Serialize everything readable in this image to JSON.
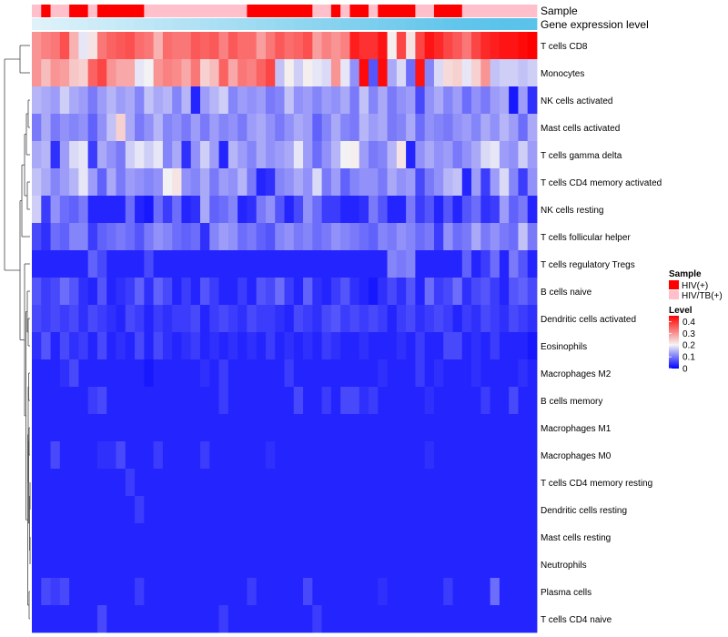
{
  "chart_data": {
    "type": "heatmap",
    "annotations": [
      "Sample",
      "Gene expression level"
    ],
    "rows": [
      "T cells CD8",
      "Monocytes",
      "NK cells activated",
      "Mast cells activated",
      "T cells gamma delta",
      "T cells CD4 memory activated",
      "NK cells resting",
      "T cells follicular helper",
      "T cells regulatory  Tregs",
      "B cells naive",
      "Dendritic cells activated",
      "Eosinophils",
      "Macrophages M2",
      "B cells memory",
      "Macrophages M1",
      "Macrophages M0",
      "T cells CD4 memory resting",
      "Dendritic cells resting",
      "Mast cells resting",
      "Neutrophils",
      "Plasma cells",
      "T cells CD4 naive"
    ],
    "sample_groups": [
      "P",
      "R",
      "P",
      "P",
      "R",
      "R",
      "P",
      "R",
      "R",
      "R",
      "R",
      "R",
      "P",
      "P",
      "P",
      "P",
      "P",
      "P",
      "P",
      "P",
      "P",
      "P",
      "P",
      "R",
      "R",
      "R",
      "R",
      "R",
      "R",
      "R",
      "P",
      "P",
      "R",
      "P",
      "R",
      "R",
      "P",
      "R",
      "R",
      "R",
      "R",
      "P",
      "P",
      "R",
      "R",
      "R",
      "P",
      "P",
      "P",
      "P",
      "P",
      "P",
      "P",
      "P"
    ],
    "expression_level": [
      0.05,
      0.07,
      0.09,
      0.11,
      0.13,
      0.15,
      0.17,
      0.19,
      0.21,
      0.23,
      0.25,
      0.27,
      0.29,
      0.31,
      0.33,
      0.35,
      0.37,
      0.39,
      0.41,
      0.43,
      0.45,
      0.47,
      0.49,
      0.51,
      0.53,
      0.55,
      0.57,
      0.59,
      0.61,
      0.63,
      0.65,
      0.67,
      0.69,
      0.71,
      0.73,
      0.75,
      0.77,
      0.79,
      0.81,
      0.83,
      0.85,
      0.87,
      0.89,
      0.91,
      0.93,
      0.95,
      0.96,
      0.97,
      0.98,
      0.99,
      1.0,
      1.0,
      1.0,
      1.0
    ],
    "values": [
      [
        0.3,
        0.32,
        0.33,
        0.37,
        0.27,
        0.19,
        0.22,
        0.33,
        0.35,
        0.36,
        0.37,
        0.34,
        0.33,
        0.27,
        0.34,
        0.33,
        0.33,
        0.36,
        0.35,
        0.36,
        0.32,
        0.36,
        0.34,
        0.34,
        0.29,
        0.33,
        0.36,
        0.34,
        0.35,
        0.37,
        0.29,
        0.32,
        0.3,
        0.32,
        0.42,
        0.4,
        0.4,
        0.43,
        0.21,
        0.38,
        0.22,
        0.38,
        0.43,
        0.41,
        0.38,
        0.36,
        0.33,
        0.38,
        0.41,
        0.42,
        0.43,
        0.43,
        0.44,
        0.45
      ],
      [
        0.3,
        0.26,
        0.3,
        0.29,
        0.25,
        0.24,
        0.35,
        0.38,
        0.3,
        0.28,
        0.28,
        0.19,
        0.2,
        0.3,
        0.32,
        0.31,
        0.28,
        0.33,
        0.24,
        0.26,
        0.35,
        0.28,
        0.33,
        0.32,
        0.35,
        0.38,
        0.16,
        0.21,
        0.17,
        0.21,
        0.19,
        0.18,
        0.3,
        0.19,
        0.12,
        0.44,
        0.07,
        0.44,
        0.14,
        0.18,
        0.09,
        0.43,
        0.11,
        0.18,
        0.23,
        0.24,
        0.19,
        0.24,
        0.3,
        0.16,
        0.17,
        0.17,
        0.16,
        0.17
      ],
      [
        0.15,
        0.14,
        0.13,
        0.17,
        0.14,
        0.13,
        0.1,
        0.13,
        0.15,
        0.13,
        0.14,
        0.11,
        0.16,
        0.14,
        0.15,
        0.11,
        0.15,
        0.03,
        0.13,
        0.15,
        0.17,
        0.11,
        0.13,
        0.12,
        0.13,
        0.1,
        0.11,
        0.16,
        0.12,
        0.13,
        0.11,
        0.13,
        0.12,
        0.14,
        0.1,
        0.16,
        0.11,
        0.14,
        0.1,
        0.12,
        0.13,
        0.06,
        0.12,
        0.14,
        0.11,
        0.13,
        0.09,
        0.12,
        0.1,
        0.13,
        0.14,
        0.02,
        0.13,
        0.04
      ],
      [
        0.1,
        0.14,
        0.1,
        0.12,
        0.11,
        0.12,
        0.08,
        0.12,
        0.16,
        0.24,
        0.14,
        0.1,
        0.12,
        0.15,
        0.11,
        0.12,
        0.1,
        0.13,
        0.1,
        0.13,
        0.11,
        0.12,
        0.1,
        0.13,
        0.14,
        0.12,
        0.1,
        0.12,
        0.14,
        0.13,
        0.08,
        0.11,
        0.14,
        0.11,
        0.1,
        0.15,
        0.13,
        0.14,
        0.1,
        0.11,
        0.14,
        0.09,
        0.12,
        0.11,
        0.1,
        0.12,
        0.13,
        0.11,
        0.14,
        0.12,
        0.15,
        0.13,
        0.09,
        0.14
      ],
      [
        0.14,
        0.15,
        0.04,
        0.13,
        0.18,
        0.19,
        0.05,
        0.14,
        0.12,
        0.1,
        0.17,
        0.19,
        0.17,
        0.19,
        0.11,
        0.14,
        0.04,
        0.12,
        0.17,
        0.13,
        0.03,
        0.15,
        0.13,
        0.11,
        0.14,
        0.12,
        0.13,
        0.14,
        0.19,
        0.13,
        0.09,
        0.12,
        0.15,
        0.2,
        0.21,
        0.13,
        0.1,
        0.11,
        0.15,
        0.22,
        0.03,
        0.12,
        0.14,
        0.12,
        0.13,
        0.1,
        0.12,
        0.14,
        0.18,
        0.19,
        0.13,
        0.12,
        0.17,
        0.13
      ],
      [
        0.16,
        0.14,
        0.11,
        0.13,
        0.15,
        0.19,
        0.13,
        0.08,
        0.14,
        0.1,
        0.13,
        0.12,
        0.11,
        0.12,
        0.2,
        0.22,
        0.12,
        0.11,
        0.14,
        0.1,
        0.13,
        0.12,
        0.15,
        0.1,
        0.03,
        0.04,
        0.11,
        0.12,
        0.14,
        0.12,
        0.18,
        0.1,
        0.13,
        0.08,
        0.11,
        0.12,
        0.12,
        0.1,
        0.14,
        0.12,
        0.13,
        0.06,
        0.1,
        0.12,
        0.15,
        0.16,
        0.03,
        0.13,
        0.05,
        0.13,
        0.18,
        0.11,
        0.05,
        0.12
      ],
      [
        0.17,
        0.05,
        0.12,
        0.09,
        0.08,
        0.1,
        0.03,
        0.03,
        0.03,
        0.03,
        0.09,
        0.03,
        0.02,
        0.09,
        0.05,
        0.09,
        0.03,
        0.04,
        0.14,
        0.08,
        0.09,
        0.11,
        0.03,
        0.04,
        0.1,
        0.12,
        0.07,
        0.03,
        0.06,
        0.12,
        0.09,
        0.05,
        0.05,
        0.03,
        0.03,
        0.04,
        0.1,
        0.07,
        0.03,
        0.03,
        0.1,
        0.05,
        0.07,
        0.03,
        0.07,
        0.03,
        0.07,
        0.09,
        0.04,
        0.05,
        0.13,
        0.08,
        0.1,
        0.03
      ],
      [
        0.06,
        0.04,
        0.09,
        0.08,
        0.11,
        0.11,
        0.05,
        0.08,
        0.09,
        0.1,
        0.09,
        0.07,
        0.1,
        0.12,
        0.11,
        0.09,
        0.08,
        0.09,
        0.04,
        0.11,
        0.13,
        0.12,
        0.09,
        0.1,
        0.08,
        0.07,
        0.11,
        0.12,
        0.1,
        0.11,
        0.09,
        0.1,
        0.12,
        0.11,
        0.1,
        0.09,
        0.08,
        0.11,
        0.1,
        0.12,
        0.11,
        0.09,
        0.1,
        0.05,
        0.12,
        0.09,
        0.1,
        0.14,
        0.1,
        0.12,
        0.1,
        0.09,
        0.16,
        0.1
      ],
      [
        0.03,
        0.03,
        0.03,
        0.03,
        0.03,
        0.03,
        0.08,
        0.06,
        0.03,
        0.03,
        0.03,
        0.03,
        0.06,
        0.03,
        0.03,
        0.03,
        0.03,
        0.03,
        0.03,
        0.03,
        0.03,
        0.03,
        0.03,
        0.03,
        0.03,
        0.03,
        0.03,
        0.03,
        0.03,
        0.03,
        0.03,
        0.03,
        0.03,
        0.03,
        0.03,
        0.03,
        0.03,
        0.03,
        0.11,
        0.1,
        0.11,
        0.03,
        0.03,
        0.03,
        0.03,
        0.03,
        0.08,
        0.03,
        0.05,
        0.09,
        0.03,
        0.1,
        0.07,
        0.03
      ],
      [
        0.07,
        0.05,
        0.06,
        0.09,
        0.07,
        0.04,
        0.03,
        0.07,
        0.03,
        0.04,
        0.05,
        0.08,
        0.04,
        0.08,
        0.06,
        0.03,
        0.05,
        0.03,
        0.07,
        0.05,
        0.03,
        0.03,
        0.05,
        0.03,
        0.07,
        0.06,
        0.09,
        0.05,
        0.03,
        0.08,
        0.04,
        0.03,
        0.05,
        0.07,
        0.04,
        0.03,
        0.02,
        0.04,
        0.06,
        0.04,
        0.07,
        0.03,
        0.09,
        0.05,
        0.06,
        0.09,
        0.04,
        0.06,
        0.07,
        0.05,
        0.03,
        0.07,
        0.08,
        0.06
      ],
      [
        0.06,
        0.05,
        0.06,
        0.05,
        0.06,
        0.04,
        0.06,
        0.05,
        0.04,
        0.03,
        0.06,
        0.05,
        0.03,
        0.05,
        0.04,
        0.05,
        0.05,
        0.06,
        0.03,
        0.05,
        0.06,
        0.05,
        0.04,
        0.06,
        0.05,
        0.05,
        0.04,
        0.03,
        0.06,
        0.05,
        0.04,
        0.06,
        0.07,
        0.05,
        0.06,
        0.05,
        0.06,
        0.05,
        0.03,
        0.05,
        0.06,
        0.04,
        0.05,
        0.06,
        0.05,
        0.03,
        0.05,
        0.04,
        0.06,
        0.05,
        0.04,
        0.06,
        0.05,
        0.04
      ],
      [
        0.04,
        0.07,
        0.03,
        0.06,
        0.04,
        0.05,
        0.03,
        0.06,
        0.03,
        0.04,
        0.03,
        0.06,
        0.03,
        0.06,
        0.04,
        0.03,
        0.04,
        0.05,
        0.03,
        0.04,
        0.03,
        0.04,
        0.03,
        0.04,
        0.03,
        0.05,
        0.03,
        0.04,
        0.03,
        0.04,
        0.03,
        0.05,
        0.04,
        0.03,
        0.03,
        0.04,
        0.03,
        0.03,
        0.03,
        0.04,
        0.03,
        0.05,
        0.03,
        0.03,
        0.06,
        0.06,
        0.03,
        0.04,
        0.03,
        0.05,
        0.03,
        0.03,
        0.03,
        0.02
      ],
      [
        0.03,
        0.03,
        0.03,
        0.04,
        0.06,
        0.03,
        0.03,
        0.03,
        0.03,
        0.03,
        0.03,
        0.03,
        0.02,
        0.03,
        0.03,
        0.03,
        0.03,
        0.03,
        0.04,
        0.03,
        0.05,
        0.03,
        0.03,
        0.03,
        0.03,
        0.03,
        0.03,
        0.05,
        0.03,
        0.03,
        0.03,
        0.03,
        0.03,
        0.03,
        0.03,
        0.03,
        0.03,
        0.04,
        0.03,
        0.03,
        0.03,
        0.05,
        0.03,
        0.04,
        0.03,
        0.03,
        0.03,
        0.04,
        0.03,
        0.03,
        0.03,
        0.03,
        0.04,
        0.03
      ],
      [
        0.03,
        0.03,
        0.03,
        0.03,
        0.03,
        0.03,
        0.05,
        0.06,
        0.03,
        0.03,
        0.03,
        0.03,
        0.03,
        0.03,
        0.03,
        0.03,
        0.03,
        0.03,
        0.03,
        0.03,
        0.05,
        0.03,
        0.03,
        0.03,
        0.03,
        0.03,
        0.03,
        0.03,
        0.06,
        0.03,
        0.03,
        0.05,
        0.03,
        0.06,
        0.06,
        0.04,
        0.05,
        0.03,
        0.03,
        0.03,
        0.03,
        0.03,
        0.04,
        0.03,
        0.03,
        0.03,
        0.03,
        0.03,
        0.05,
        0.03,
        0.03,
        0.06,
        0.03,
        0.03
      ],
      [
        0.03,
        0.03,
        0.03,
        0.03,
        0.03,
        0.03,
        0.03,
        0.03,
        0.03,
        0.03,
        0.03,
        0.03,
        0.03,
        0.03,
        0.03,
        0.03,
        0.03,
        0.03,
        0.03,
        0.03,
        0.03,
        0.03,
        0.03,
        0.03,
        0.03,
        0.03,
        0.03,
        0.03,
        0.03,
        0.03,
        0.03,
        0.03,
        0.03,
        0.03,
        0.03,
        0.03,
        0.03,
        0.03,
        0.03,
        0.03,
        0.03,
        0.03,
        0.03,
        0.03,
        0.03,
        0.03,
        0.03,
        0.03,
        0.03,
        0.03,
        0.03,
        0.03,
        0.03,
        0.03
      ],
      [
        0.03,
        0.03,
        0.06,
        0.03,
        0.03,
        0.03,
        0.03,
        0.04,
        0.04,
        0.06,
        0.03,
        0.03,
        0.03,
        0.05,
        0.03,
        0.03,
        0.03,
        0.03,
        0.05,
        0.03,
        0.03,
        0.03,
        0.03,
        0.03,
        0.03,
        0.04,
        0.03,
        0.03,
        0.03,
        0.03,
        0.03,
        0.03,
        0.03,
        0.03,
        0.03,
        0.03,
        0.03,
        0.03,
        0.03,
        0.03,
        0.03,
        0.03,
        0.04,
        0.03,
        0.03,
        0.03,
        0.03,
        0.03,
        0.03,
        0.03,
        0.03,
        0.03,
        0.03,
        0.03
      ],
      [
        0.03,
        0.03,
        0.03,
        0.03,
        0.03,
        0.03,
        0.03,
        0.03,
        0.03,
        0.03,
        0.05,
        0.03,
        0.03,
        0.03,
        0.03,
        0.03,
        0.03,
        0.03,
        0.03,
        0.03,
        0.03,
        0.03,
        0.03,
        0.03,
        0.03,
        0.03,
        0.03,
        0.03,
        0.03,
        0.03,
        0.03,
        0.03,
        0.03,
        0.03,
        0.03,
        0.03,
        0.03,
        0.03,
        0.03,
        0.03,
        0.03,
        0.03,
        0.03,
        0.03,
        0.03,
        0.03,
        0.03,
        0.03,
        0.03,
        0.03,
        0.03,
        0.03,
        0.03,
        0.03
      ],
      [
        0.03,
        0.03,
        0.03,
        0.03,
        0.03,
        0.03,
        0.03,
        0.03,
        0.03,
        0.03,
        0.03,
        0.05,
        0.03,
        0.03,
        0.03,
        0.03,
        0.03,
        0.03,
        0.03,
        0.03,
        0.03,
        0.03,
        0.03,
        0.03,
        0.03,
        0.03,
        0.03,
        0.03,
        0.03,
        0.03,
        0.03,
        0.03,
        0.03,
        0.03,
        0.03,
        0.03,
        0.03,
        0.03,
        0.03,
        0.03,
        0.03,
        0.03,
        0.03,
        0.03,
        0.03,
        0.03,
        0.03,
        0.03,
        0.03,
        0.03,
        0.03,
        0.03,
        0.03,
        0.03
      ],
      [
        0.03,
        0.03,
        0.03,
        0.03,
        0.03,
        0.03,
        0.03,
        0.03,
        0.03,
        0.03,
        0.03,
        0.03,
        0.03,
        0.03,
        0.03,
        0.03,
        0.03,
        0.03,
        0.03,
        0.03,
        0.03,
        0.03,
        0.03,
        0.03,
        0.03,
        0.03,
        0.03,
        0.03,
        0.03,
        0.03,
        0.03,
        0.03,
        0.03,
        0.03,
        0.03,
        0.03,
        0.03,
        0.03,
        0.03,
        0.03,
        0.03,
        0.03,
        0.03,
        0.03,
        0.03,
        0.03,
        0.03,
        0.03,
        0.03,
        0.03,
        0.03,
        0.03,
        0.03,
        0.03
      ],
      [
        0.03,
        0.03,
        0.03,
        0.03,
        0.03,
        0.03,
        0.03,
        0.03,
        0.03,
        0.03,
        0.03,
        0.03,
        0.03,
        0.03,
        0.03,
        0.03,
        0.03,
        0.03,
        0.03,
        0.03,
        0.03,
        0.03,
        0.03,
        0.03,
        0.03,
        0.03,
        0.03,
        0.03,
        0.03,
        0.03,
        0.03,
        0.03,
        0.03,
        0.03,
        0.03,
        0.03,
        0.03,
        0.03,
        0.03,
        0.03,
        0.03,
        0.03,
        0.03,
        0.03,
        0.03,
        0.03,
        0.03,
        0.03,
        0.03,
        0.03,
        0.03,
        0.03,
        0.03,
        0.03
      ],
      [
        0.03,
        0.06,
        0.05,
        0.06,
        0.03,
        0.03,
        0.03,
        0.03,
        0.03,
        0.03,
        0.03,
        0.05,
        0.03,
        0.03,
        0.03,
        0.03,
        0.03,
        0.03,
        0.03,
        0.03,
        0.03,
        0.03,
        0.03,
        0.05,
        0.03,
        0.03,
        0.03,
        0.03,
        0.03,
        0.06,
        0.03,
        0.03,
        0.03,
        0.03,
        0.03,
        0.03,
        0.03,
        0.04,
        0.03,
        0.03,
        0.03,
        0.03,
        0.03,
        0.03,
        0.05,
        0.03,
        0.03,
        0.03,
        0.03,
        0.09,
        0.03,
        0.03,
        0.03,
        0.03
      ],
      [
        0.03,
        0.03,
        0.03,
        0.03,
        0.03,
        0.03,
        0.03,
        0.06,
        0.03,
        0.03,
        0.03,
        0.03,
        0.03,
        0.03,
        0.03,
        0.03,
        0.03,
        0.03,
        0.03,
        0.03,
        0.05,
        0.03,
        0.03,
        0.03,
        0.03,
        0.03,
        0.03,
        0.03,
        0.03,
        0.03,
        0.05,
        0.03,
        0.03,
        0.03,
        0.03,
        0.03,
        0.03,
        0.03,
        0.03,
        0.03,
        0.03,
        0.03,
        0.03,
        0.03,
        0.03,
        0.03,
        0.03,
        0.03,
        0.03,
        0.03,
        0.03,
        0.03,
        0.03,
        0.03
      ]
    ],
    "legend": {
      "sample_title": "Sample",
      "sample_entries": [
        {
          "label": "HIV(+)",
          "color": "#ff0000"
        },
        {
          "label": "HIV/TB(+)",
          "color": "#ffc0cb"
        }
      ],
      "level_title": "Level",
      "level_ticks": [
        "0.4",
        "0.3",
        "0.2",
        "0.1",
        "0"
      ],
      "level_min": 0,
      "level_max": 0.45,
      "placement": "right"
    },
    "colors": {
      "low": "#0000ff",
      "mid": "#f5f5f5",
      "high": "#ff0000",
      "annot_low": "#e6f4fb",
      "annot_high": "#5bc3ea",
      "hiv": "#ff0000",
      "hivtb": "#ffc0cb"
    }
  }
}
